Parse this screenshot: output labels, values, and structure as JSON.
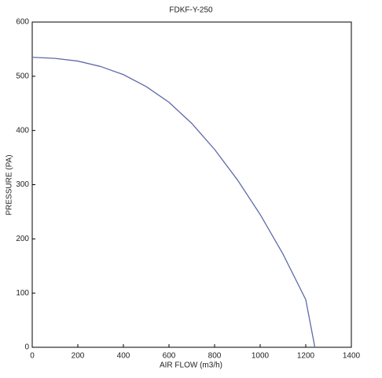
{
  "chart_data": {
    "type": "line",
    "title": "FDKF-Y-250",
    "x_label": "AIR FLOW (m3/h)",
    "y_label": "PRESSURE (PA)",
    "x": [
      0,
      100,
      200,
      300,
      400,
      500,
      600,
      700,
      800,
      900,
      1000,
      1100,
      1200,
      1240
    ],
    "series": [
      {
        "name": "FDKF-Y-250",
        "color": "#5f6aa8",
        "values": [
          535,
          533,
          528,
          518,
          503,
          481,
          452,
          413,
          365,
          309,
          245,
          172,
          88,
          0
        ]
      }
    ],
    "xlim": [
      0,
      1400
    ],
    "xticks": [
      0,
      200,
      400,
      600,
      800,
      1000,
      1200,
      1400
    ],
    "ylim": [
      0,
      600
    ],
    "yticks": [
      0,
      100,
      200,
      300,
      400,
      500,
      600
    ]
  }
}
